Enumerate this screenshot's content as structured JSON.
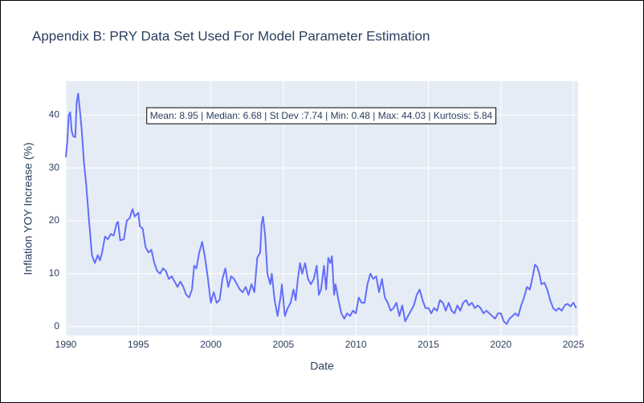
{
  "chart_data": {
    "type": "line",
    "title": "Appendix B: PRY Data Set Used For Model Parameter Estimation",
    "x_label": "Date",
    "y_label": "Inflation YOY Increase (%)",
    "annotation": "Mean: 8.95 | Median: 6.68 | St Dev :7.74 | Min: 0.48 | Max: 44.03 | Kurtosis: 5.84",
    "color": "#636efa",
    "grid": true,
    "xlim": [
      1990,
      2025.33
    ],
    "xticks": [
      1990,
      1995,
      2000,
      2005,
      2010,
      2015,
      2020,
      2025
    ],
    "ylim": [
      -1.7,
      46.4
    ],
    "yticks": [
      0,
      10,
      20,
      30,
      40
    ],
    "x": [
      1990.0,
      1990.1,
      1990.2,
      1990.3,
      1990.4,
      1990.5,
      1990.65,
      1990.75,
      1990.85,
      1991.0,
      1991.1,
      1991.25,
      1991.4,
      1991.6,
      1991.8,
      1992.0,
      1992.2,
      1992.35,
      1992.5,
      1992.7,
      1992.9,
      1993.1,
      1993.3,
      1993.5,
      1993.6,
      1993.75,
      1994.0,
      1994.2,
      1994.4,
      1994.6,
      1994.75,
      1995.0,
      1995.1,
      1995.3,
      1995.5,
      1995.7,
      1995.9,
      1996.1,
      1996.3,
      1996.5,
      1996.7,
      1996.9,
      1997.1,
      1997.3,
      1997.5,
      1997.7,
      1997.9,
      1998.1,
      1998.3,
      1998.5,
      1998.7,
      1998.85,
      1999.0,
      1999.2,
      1999.4,
      1999.6,
      1999.8,
      2000.0,
      2000.2,
      2000.4,
      2000.6,
      2000.8,
      2001.0,
      2001.2,
      2001.4,
      2001.6,
      2001.8,
      2002.0,
      2002.2,
      2002.4,
      2002.6,
      2002.8,
      2003.0,
      2003.2,
      2003.4,
      2003.5,
      2003.6,
      2003.75,
      2003.9,
      2004.1,
      2004.2,
      2004.4,
      2004.6,
      2004.8,
      2004.9,
      2005.1,
      2005.3,
      2005.5,
      2005.7,
      2005.85,
      2006.0,
      2006.15,
      2006.3,
      2006.5,
      2006.7,
      2006.9,
      2007.1,
      2007.3,
      2007.45,
      2007.6,
      2007.8,
      2007.95,
      2008.1,
      2008.25,
      2008.35,
      2008.5,
      2008.6,
      2008.8,
      2009.0,
      2009.2,
      2009.4,
      2009.6,
      2009.8,
      2010.0,
      2010.2,
      2010.4,
      2010.6,
      2010.8,
      2011.0,
      2011.2,
      2011.4,
      2011.6,
      2011.8,
      2012.0,
      2012.2,
      2012.4,
      2012.6,
      2012.8,
      2013.0,
      2013.2,
      2013.4,
      2013.6,
      2013.8,
      2014.0,
      2014.2,
      2014.4,
      2014.6,
      2014.8,
      2015.0,
      2015.2,
      2015.4,
      2015.6,
      2015.8,
      2016.0,
      2016.2,
      2016.4,
      2016.6,
      2016.8,
      2017.0,
      2017.2,
      2017.4,
      2017.6,
      2017.8,
      2018.0,
      2018.2,
      2018.4,
      2018.6,
      2018.8,
      2019.0,
      2019.2,
      2019.4,
      2019.6,
      2019.8,
      2020.0,
      2020.2,
      2020.4,
      2020.6,
      2020.8,
      2021.0,
      2021.2,
      2021.4,
      2021.6,
      2021.8,
      2022.0,
      2022.2,
      2022.35,
      2022.5,
      2022.65,
      2022.8,
      2023.0,
      2023.2,
      2023.4,
      2023.6,
      2023.8,
      2024.0,
      2024.2,
      2024.4,
      2024.6,
      2024.8,
      2025.0,
      2025.2
    ],
    "values": [
      32,
      35,
      40,
      40.5,
      37,
      36,
      35.8,
      42.5,
      44.03,
      40,
      37,
      31,
      27,
      20,
      13.5,
      12,
      13.5,
      12.5,
      14,
      17,
      16.5,
      17.5,
      17.2,
      19.5,
      19.8,
      16.3,
      16.5,
      20,
      20.5,
      22.2,
      20.8,
      21.5,
      19,
      18.5,
      15,
      14,
      14.5,
      12,
      10.5,
      10,
      11,
      10.5,
      9,
      9.5,
      8.5,
      7.5,
      8.5,
      7.5,
      6,
      5.5,
      7,
      11.5,
      11,
      14,
      16,
      13,
      9,
      4.5,
      6.5,
      4.5,
      5,
      9,
      11,
      7.5,
      9.5,
      9,
      8,
      7,
      6.5,
      7.5,
      6,
      8,
      6.5,
      13,
      14,
      19.5,
      20.8,
      17,
      10,
      8,
      10,
      5,
      2,
      5.5,
      8,
      2,
      3.5,
      4.5,
      7,
      5,
      9,
      12,
      10,
      12,
      9,
      8,
      9,
      11.5,
      6,
      7,
      11.5,
      7,
      13,
      12,
      13.3,
      6,
      8,
      5,
      2.5,
      1.5,
      2.5,
      2,
      3,
      2.5,
      5.5,
      4.5,
      4.5,
      8,
      10,
      9,
      9.5,
      6.5,
      9,
      5.5,
      4.5,
      3,
      3.5,
      4.5,
      2,
      4,
      1,
      2,
      3,
      4,
      6,
      7,
      5,
      3.5,
      3.5,
      2.5,
      3.5,
      3,
      5,
      4.5,
      3,
      4.5,
      3,
      2.5,
      4,
      3,
      4.5,
      5,
      4,
      4.5,
      3.5,
      4,
      3.5,
      2.5,
      3,
      2.5,
      2,
      1.5,
      2.5,
      2.5,
      1,
      0.48,
      1.5,
      2,
      2.5,
      2,
      4,
      5.5,
      7.5,
      7,
      9.5,
      11.7,
      11.3,
      10,
      8,
      8.3,
      7,
      5,
      3.5,
      3,
      3.5,
      3,
      4,
      4.3,
      3.8,
      4.5,
      3.5
    ]
  }
}
